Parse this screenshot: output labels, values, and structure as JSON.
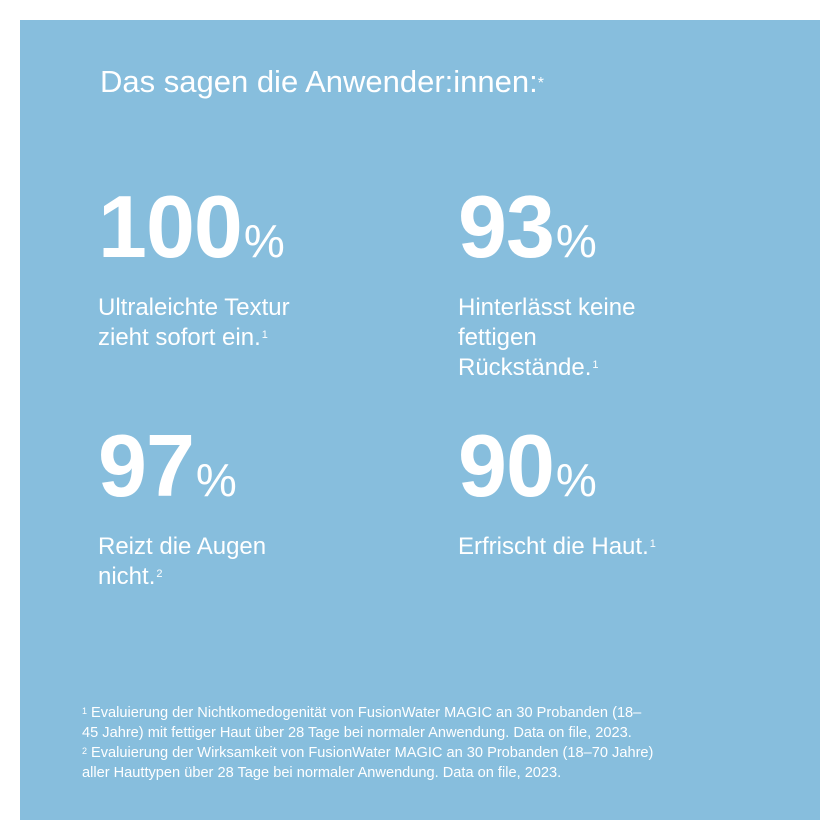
{
  "title": "Das sagen die Anwender:innen:",
  "title_marker": "*",
  "stats": [
    {
      "value": 100,
      "unit": "%",
      "lines": [
        "Ultraleichte Textur",
        "zieht sofort ein."
      ],
      "footnote": "1"
    },
    {
      "value": 93,
      "unit": "%",
      "lines": [
        "Hinterlässt keine",
        "fettigen",
        "Rückstände."
      ],
      "footnote": "1"
    },
    {
      "value": 97,
      "unit": "%",
      "lines": [
        "Reizt die Augen",
        "nicht."
      ],
      "footnote": "2"
    },
    {
      "value": 90,
      "unit": "%",
      "lines": [
        "Erfrischt die Haut."
      ],
      "footnote": "1"
    }
  ],
  "footnotes": [
    {
      "marker": "1",
      "lines": [
        "Evaluierung der Nichtkomedogenität von FusionWater MAGIC an 30 Probanden (18–",
        "45 Jahre) mit fettiger Haut über 28 Tage bei normaler Anwendung. Data on file, 2023."
      ]
    },
    {
      "marker": "2",
      "lines": [
        "Evaluierung der Wirksamkeit von FusionWater MAGIC an 30 Probanden (18–70 Jahre)",
        "aller Hauttypen über 28 Tage bei normaler Anwendung. Data on file, 2023."
      ]
    }
  ]
}
